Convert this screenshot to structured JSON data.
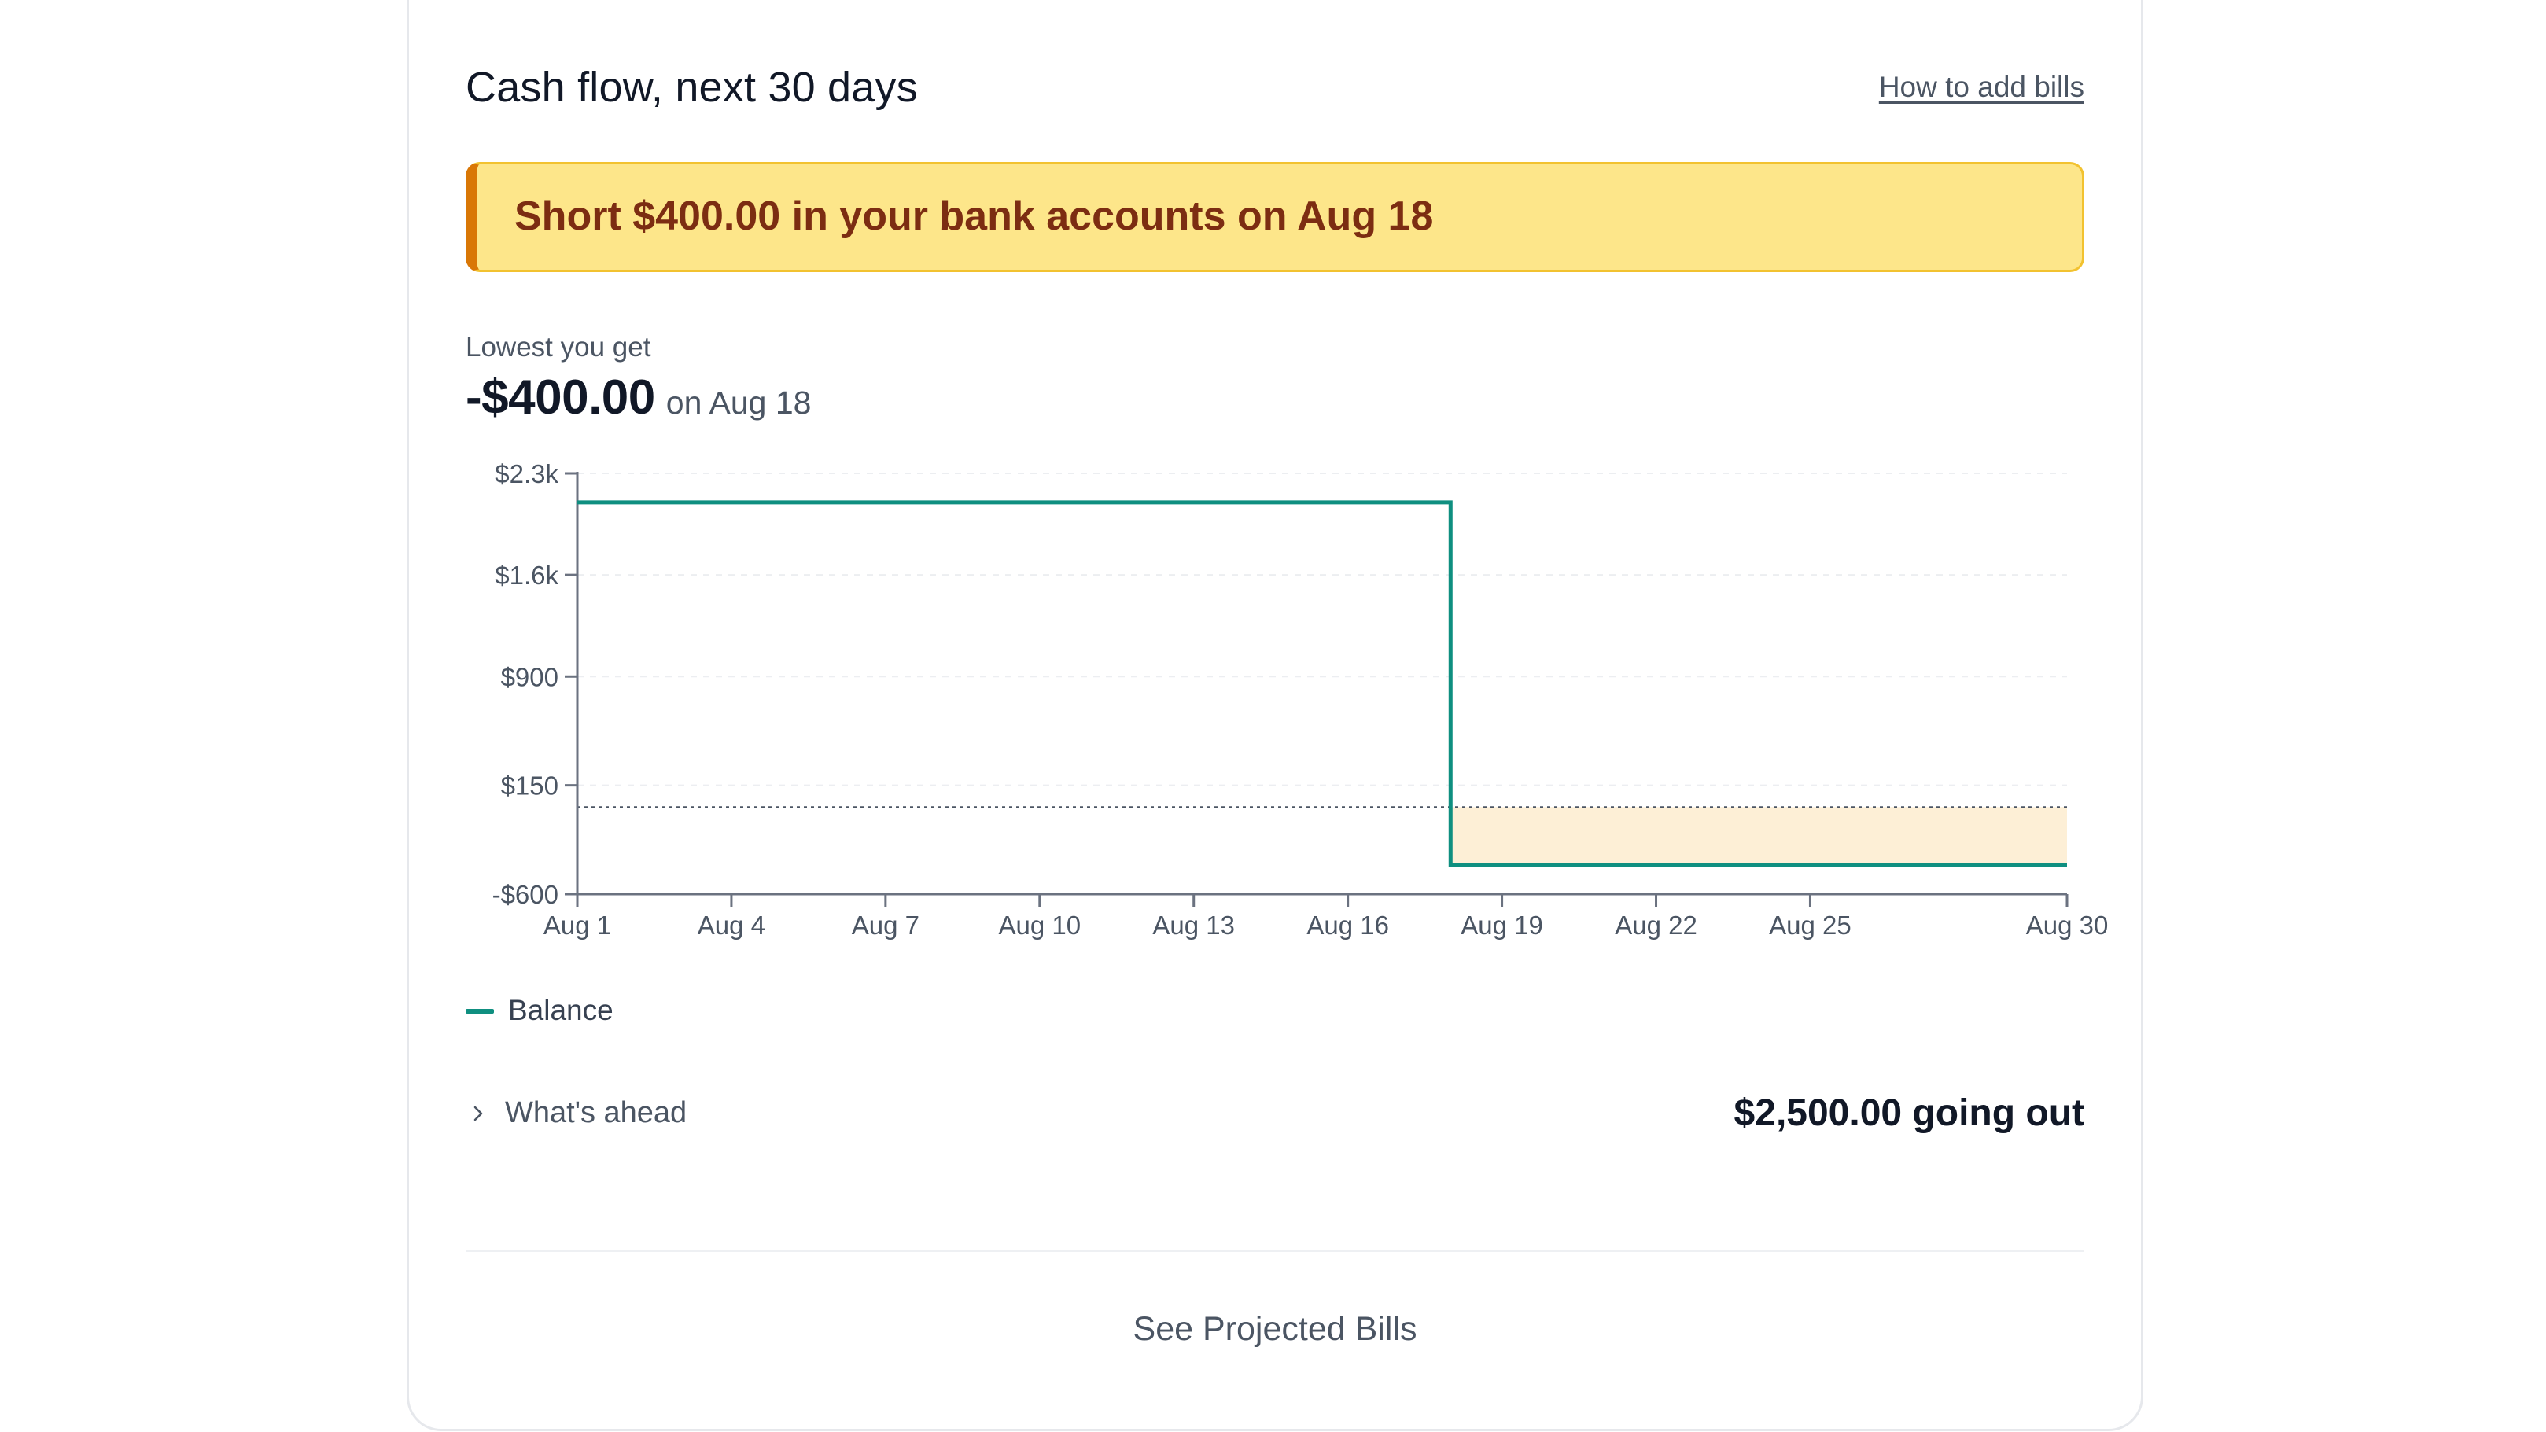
{
  "card": {
    "title": "Cash flow, next 30 days",
    "help_link": "How to add bills",
    "alert": "Short $400.00 in your bank accounts on Aug 18",
    "lowest": {
      "label": "Lowest you get",
      "value": "-$400.00",
      "date": "on Aug 18"
    },
    "legend": {
      "balance_label": "Balance"
    },
    "ahead": {
      "label": "What's ahead",
      "going_out": "$2,500.00 going out"
    },
    "see_bills": "See Projected Bills"
  },
  "colors": {
    "balance_line": "#0f8f80",
    "shortfall_fill": "#fdefd6",
    "alert_bg": "#fde68a",
    "alert_accent": "#d97706",
    "alert_text": "#7c2d12"
  },
  "chart_data": {
    "type": "line",
    "step": true,
    "x_range": [
      1,
      30
    ],
    "ylim": [
      -600,
      2300
    ],
    "y_ticks": [
      {
        "value": -600,
        "label": "-$600"
      },
      {
        "value": 150,
        "label": "$150"
      },
      {
        "value": 900,
        "label": "$900"
      },
      {
        "value": 1600,
        "label": "$1.6k"
      },
      {
        "value": 2300,
        "label": "$2.3k"
      }
    ],
    "x_ticks": [
      {
        "value": 1,
        "label": "Aug 1"
      },
      {
        "value": 4,
        "label": "Aug 4"
      },
      {
        "value": 7,
        "label": "Aug 7"
      },
      {
        "value": 10,
        "label": "Aug 10"
      },
      {
        "value": 13,
        "label": "Aug 13"
      },
      {
        "value": 16,
        "label": "Aug 16"
      },
      {
        "value": 19,
        "label": "Aug 19"
      },
      {
        "value": 22,
        "label": "Aug 22"
      },
      {
        "value": 25,
        "label": "Aug 25"
      },
      {
        "value": 30,
        "label": "Aug 30"
      }
    ],
    "series": [
      {
        "name": "Balance",
        "points": [
          {
            "x": 1,
            "y": 2100
          },
          {
            "x": 18,
            "y": 2100
          },
          {
            "x": 18,
            "y": -400
          },
          {
            "x": 30,
            "y": -400
          }
        ]
      }
    ],
    "threshold": 0,
    "shortfall_region": {
      "x_from": 18,
      "x_to": 30,
      "y_from": -400,
      "y_to": 0
    },
    "grid": true,
    "legend_position": "bottom-left"
  }
}
